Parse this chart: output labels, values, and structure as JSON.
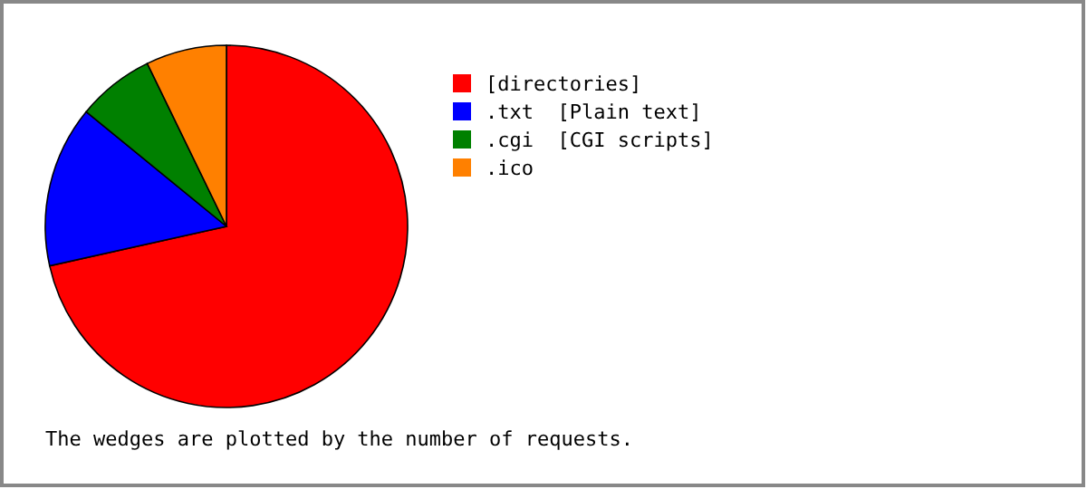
{
  "chart_data": {
    "type": "pie",
    "categories": [
      "[directories]",
      ".txt  [Plain text]",
      ".cgi  [CGI scripts]",
      ".ico"
    ],
    "values": [
      71.5,
      14.4,
      6.9,
      7.2
    ],
    "colors": [
      "#ff0000",
      "#0000ff",
      "#008000",
      "#ff8000"
    ],
    "legend": "right",
    "annotations": [
      "The wedges are plotted by the number of requests."
    ]
  }
}
